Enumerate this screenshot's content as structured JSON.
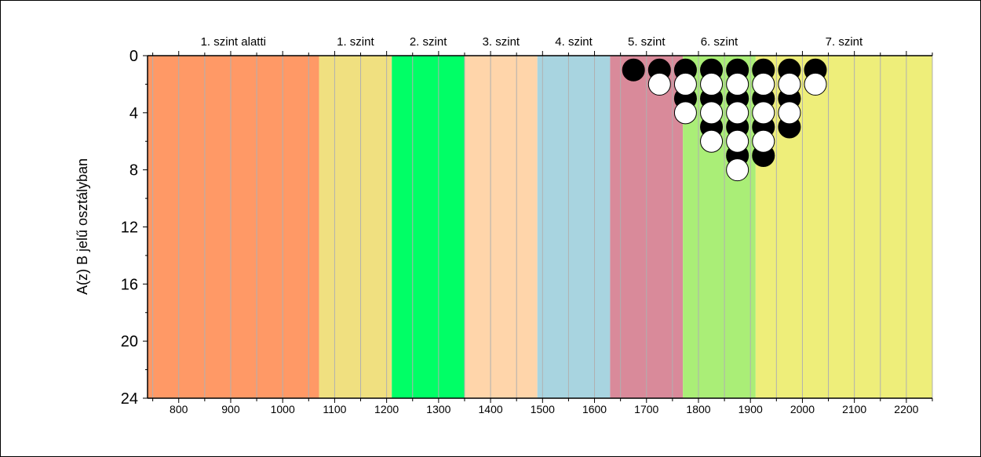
{
  "chart_data": {
    "type": "scatter",
    "ylabel": "A(z) B jelű osztályban",
    "xlim": [
      740,
      2250
    ],
    "ylim": [
      0,
      24
    ],
    "y_inverted": true,
    "x_ticks": [
      800,
      900,
      1000,
      1100,
      1200,
      1300,
      1400,
      1500,
      1600,
      1700,
      1800,
      1900,
      2000,
      2100,
      2200
    ],
    "y_ticks": [
      0,
      4,
      8,
      12,
      16,
      20,
      24
    ],
    "grid": "vertical",
    "bands": [
      {
        "label": "1. szint alatti",
        "from": 740,
        "to": 1070,
        "color": "#ff9966"
      },
      {
        "label": "1. szint",
        "from": 1070,
        "to": 1210,
        "color": "#f0e080"
      },
      {
        "label": "2. szint",
        "from": 1210,
        "to": 1350,
        "color": "#00ff66"
      },
      {
        "label": "3. szint",
        "from": 1350,
        "to": 1490,
        "color": "#ffd5aa"
      },
      {
        "label": "4. szint",
        "from": 1490,
        "to": 1630,
        "color": "#a8d4e0"
      },
      {
        "label": "5. szint",
        "from": 1630,
        "to": 1770,
        "color": "#d98a9a"
      },
      {
        "label": "6. szint",
        "from": 1770,
        "to": 1910,
        "color": "#aaee77"
      },
      {
        "label": "7. szint",
        "from": 1910,
        "to": 2250,
        "color": "#eeee7a"
      }
    ],
    "series": [
      {
        "marker": "black",
        "points": [
          {
            "x": 1675,
            "count": 1
          },
          {
            "x": 1725,
            "count": 1
          },
          {
            "x": 1775,
            "count": 2
          },
          {
            "x": 1825,
            "count": 3
          },
          {
            "x": 1875,
            "count": 4
          },
          {
            "x": 1925,
            "count": 4
          },
          {
            "x": 1975,
            "count": 3
          },
          {
            "x": 2025,
            "count": 1
          }
        ]
      },
      {
        "marker": "white",
        "points": [
          {
            "x": 1725,
            "count": 1
          },
          {
            "x": 1775,
            "count": 2
          },
          {
            "x": 1825,
            "count": 3
          },
          {
            "x": 1875,
            "count": 4
          },
          {
            "x": 1925,
            "count": 3
          },
          {
            "x": 1975,
            "count": 2
          },
          {
            "x": 2025,
            "count": 1
          }
        ]
      }
    ],
    "colors": {
      "grid": "#b0b0b0",
      "axis": "#000000",
      "black_marker": "#000000",
      "white_marker": "#ffffff"
    }
  }
}
